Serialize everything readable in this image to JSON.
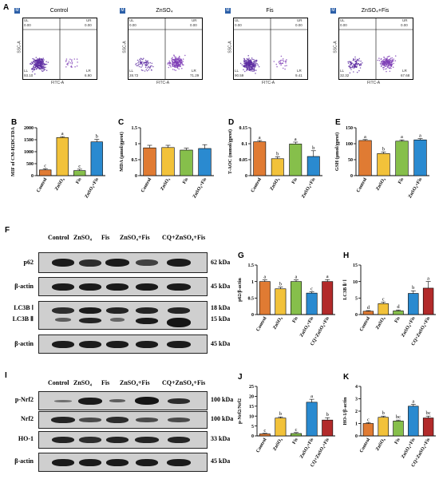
{
  "panel_letters": {
    "A": "A",
    "B": "B",
    "C": "C",
    "D": "D",
    "E": "E",
    "F": "F",
    "G": "G",
    "H": "H",
    "I": "I",
    "J": "J",
    "K": "K"
  },
  "flow": {
    "xaxis": "FITC-A",
    "yaxis": "SSC-A",
    "plots": [
      {
        "title": "Control",
        "ul": "0.00",
        "ur": "0.00",
        "ll": "93.10",
        "lr": "6.90"
      },
      {
        "title": "ZnSO₄",
        "ul": "0.00",
        "ur": "0.00",
        "ll": "28.72",
        "lr": "71.29"
      },
      {
        "title": "Fis",
        "ul": "0.00",
        "ur": "0.00",
        "ll": "90.59",
        "lr": "9.41"
      },
      {
        "title": "ZnSO₄+Fis",
        "ul": "0.00",
        "ur": "0.00",
        "ll": "32.32",
        "lr": "67.68"
      }
    ]
  },
  "colors": {
    "orange": "#e07b33",
    "yellow": "#f2c23a",
    "green": "#86bf4b",
    "blue": "#2a8ad0",
    "red": "#b22a2a"
  },
  "chart_data": [
    {
      "panel": "B",
      "type": "bar",
      "ylabel": "MIF of CM-H2DCFDA",
      "ylim": [
        0,
        2000
      ],
      "yticks": [
        0,
        500,
        1000,
        1500,
        2000
      ],
      "categories": [
        "Control",
        "ZnSO₄",
        "Fis",
        "ZnSO₄+Fis"
      ],
      "values": [
        240,
        1590,
        210,
        1410
      ],
      "errors": [
        50,
        40,
        60,
        100
      ],
      "letters": [
        "c",
        "a",
        "c",
        "b"
      ],
      "colors": [
        "#e07b33",
        "#f2c23a",
        "#86bf4b",
        "#2a8ad0"
      ]
    },
    {
      "panel": "C",
      "type": "bar",
      "ylabel": "MDA (μmol/gprot)",
      "ylim": [
        0,
        1.5
      ],
      "yticks": [
        0,
        0.5,
        1.0,
        1.5
      ],
      "categories": [
        "Control",
        "ZnSO₄",
        "Fis",
        "ZnSO₄+Fis"
      ],
      "values": [
        0.87,
        0.88,
        0.8,
        0.85
      ],
      "errors": [
        0.08,
        0.07,
        0.06,
        0.12
      ],
      "letters": [
        "",
        "",
        "",
        ""
      ],
      "colors": [
        "#e07b33",
        "#f2c23a",
        "#86bf4b",
        "#2a8ad0"
      ]
    },
    {
      "panel": "D",
      "type": "bar",
      "ylabel": "T-AOC (mmol/gprot)",
      "ylim": [
        0,
        0.15
      ],
      "yticks": [
        0,
        0.05,
        0.1,
        0.15
      ],
      "categories": [
        "Control",
        "ZnSO₄",
        "Fis",
        "ZnSO₄+Fis"
      ],
      "values": [
        0.106,
        0.053,
        0.099,
        0.06
      ],
      "errors": [
        0.004,
        0.006,
        0.006,
        0.018
      ],
      "letters": [
        "a",
        "b",
        "a",
        "b"
      ],
      "colors": [
        "#e07b33",
        "#f2c23a",
        "#86bf4b",
        "#2a8ad0"
      ]
    },
    {
      "panel": "E",
      "type": "bar",
      "ylabel": "GSH (μmol/gprot)",
      "ylim": [
        0,
        150
      ],
      "yticks": [
        0,
        50,
        100,
        150
      ],
      "categories": [
        "Control",
        "ZnSO₄",
        "Fis",
        "ZnSO₄+Fis"
      ],
      "values": [
        110,
        69,
        108,
        112
      ],
      "errors": [
        3,
        5,
        4,
        4
      ],
      "letters": [
        "a",
        "b",
        "a",
        "a"
      ],
      "colors": [
        "#e07b33",
        "#f2c23a",
        "#86bf4b",
        "#2a8ad0"
      ]
    },
    {
      "panel": "G",
      "type": "bar",
      "ylabel": "p62/β-actin",
      "ylim": [
        0,
        1.5
      ],
      "yticks": [
        0,
        0.5,
        1.0,
        1.5
      ],
      "categories": [
        "Control",
        "ZnSO₄",
        "Fis",
        "ZnSO₄+Fis",
        "CQ+ZnSO₄+Fis"
      ],
      "values": [
        1.0,
        0.78,
        1.0,
        0.65,
        1.0
      ],
      "errors": [
        0.05,
        0.05,
        0.05,
        0.04,
        0.06
      ],
      "letters": [
        "a",
        "b",
        "a",
        "c",
        "a"
      ],
      "colors": [
        "#e07b33",
        "#f2c23a",
        "#86bf4b",
        "#2a8ad0",
        "#b22a2a"
      ]
    },
    {
      "panel": "H",
      "type": "bar",
      "ylabel": "LC3B Ⅱ/ Ⅰ",
      "ylim": [
        0,
        15
      ],
      "yticks": [
        0,
        5,
        10,
        15
      ],
      "categories": [
        "Control",
        "ZnSO₄",
        "Fis",
        "ZnSO₄+Fis",
        "CQ+ZnSO₄+Fis"
      ],
      "values": [
        1.0,
        3.3,
        1.1,
        6.4,
        8.0
      ],
      "errors": [
        0.2,
        0.5,
        0.3,
        0.8,
        2.0
      ],
      "letters": [
        "d",
        "c",
        "d",
        "b",
        "a"
      ],
      "colors": [
        "#e07b33",
        "#f2c23a",
        "#86bf4b",
        "#2a8ad0",
        "#b22a2a"
      ]
    },
    {
      "panel": "J",
      "type": "bar",
      "ylabel": "p-Nrf2/Nrf2",
      "ylim": [
        0,
        25
      ],
      "yticks": [
        0,
        5,
        10,
        15,
        20,
        25
      ],
      "categories": [
        "Control",
        "ZnSO₄",
        "Fis",
        "ZnSO₄+Fis",
        "CQ+ZnSO₄+Fis"
      ],
      "values": [
        1.0,
        9.0,
        1.2,
        17.0,
        8.0
      ],
      "errors": [
        0.3,
        0.6,
        0.5,
        1.5,
        1.2
      ],
      "letters": [
        "c",
        "b",
        "c",
        "a",
        "b"
      ],
      "colors": [
        "#e07b33",
        "#f2c23a",
        "#86bf4b",
        "#2a8ad0",
        "#b22a2a"
      ]
    },
    {
      "panel": "K",
      "type": "bar",
      "ylabel": "HO-1/β-actin",
      "ylim": [
        0,
        4
      ],
      "yticks": [
        0,
        1,
        2,
        3,
        4
      ],
      "categories": [
        "Control",
        "ZnSO₄",
        "Fis",
        "ZnSO₄+Fis",
        "CQ+ZnSO₄+Fis"
      ],
      "values": [
        1.0,
        1.5,
        1.2,
        2.4,
        1.45
      ],
      "errors": [
        0.08,
        0.1,
        0.08,
        0.15,
        0.15
      ],
      "letters": [
        "c",
        "b",
        "bc",
        "a",
        "bc"
      ],
      "colors": [
        "#e07b33",
        "#f2c23a",
        "#86bf4b",
        "#2a8ad0",
        "#b22a2a"
      ]
    }
  ],
  "blotF": {
    "lanes": [
      "Control",
      "ZnSO₄",
      "Fis",
      "ZnSO₄+Fis",
      "CQ+ZnSO₄+Fis"
    ],
    "rows": [
      {
        "name": "p62",
        "kda": "62 kDa"
      },
      {
        "name": "β-actin",
        "kda": "45 kDa"
      },
      {
        "name": "LC3B Ⅰ",
        "kda": "18 kDa"
      },
      {
        "name": "LC3B Ⅱ",
        "kda": "15 kDa"
      },
      {
        "name": "β-actin",
        "kda": "45 kDa"
      }
    ]
  },
  "blotI": {
    "lanes": [
      "Control",
      "ZnSO₄",
      "Fis",
      "ZnSO₄+Fis",
      "CQ+ZnSO₄+Fis"
    ],
    "rows": [
      {
        "name": "p-Nrf2",
        "kda": "100 kDa"
      },
      {
        "name": "Nrf2",
        "kda": "100 kDa"
      },
      {
        "name": "HO-1",
        "kda": "33 kDa"
      },
      {
        "name": "β-actin",
        "kda": "45 kDa"
      }
    ]
  }
}
